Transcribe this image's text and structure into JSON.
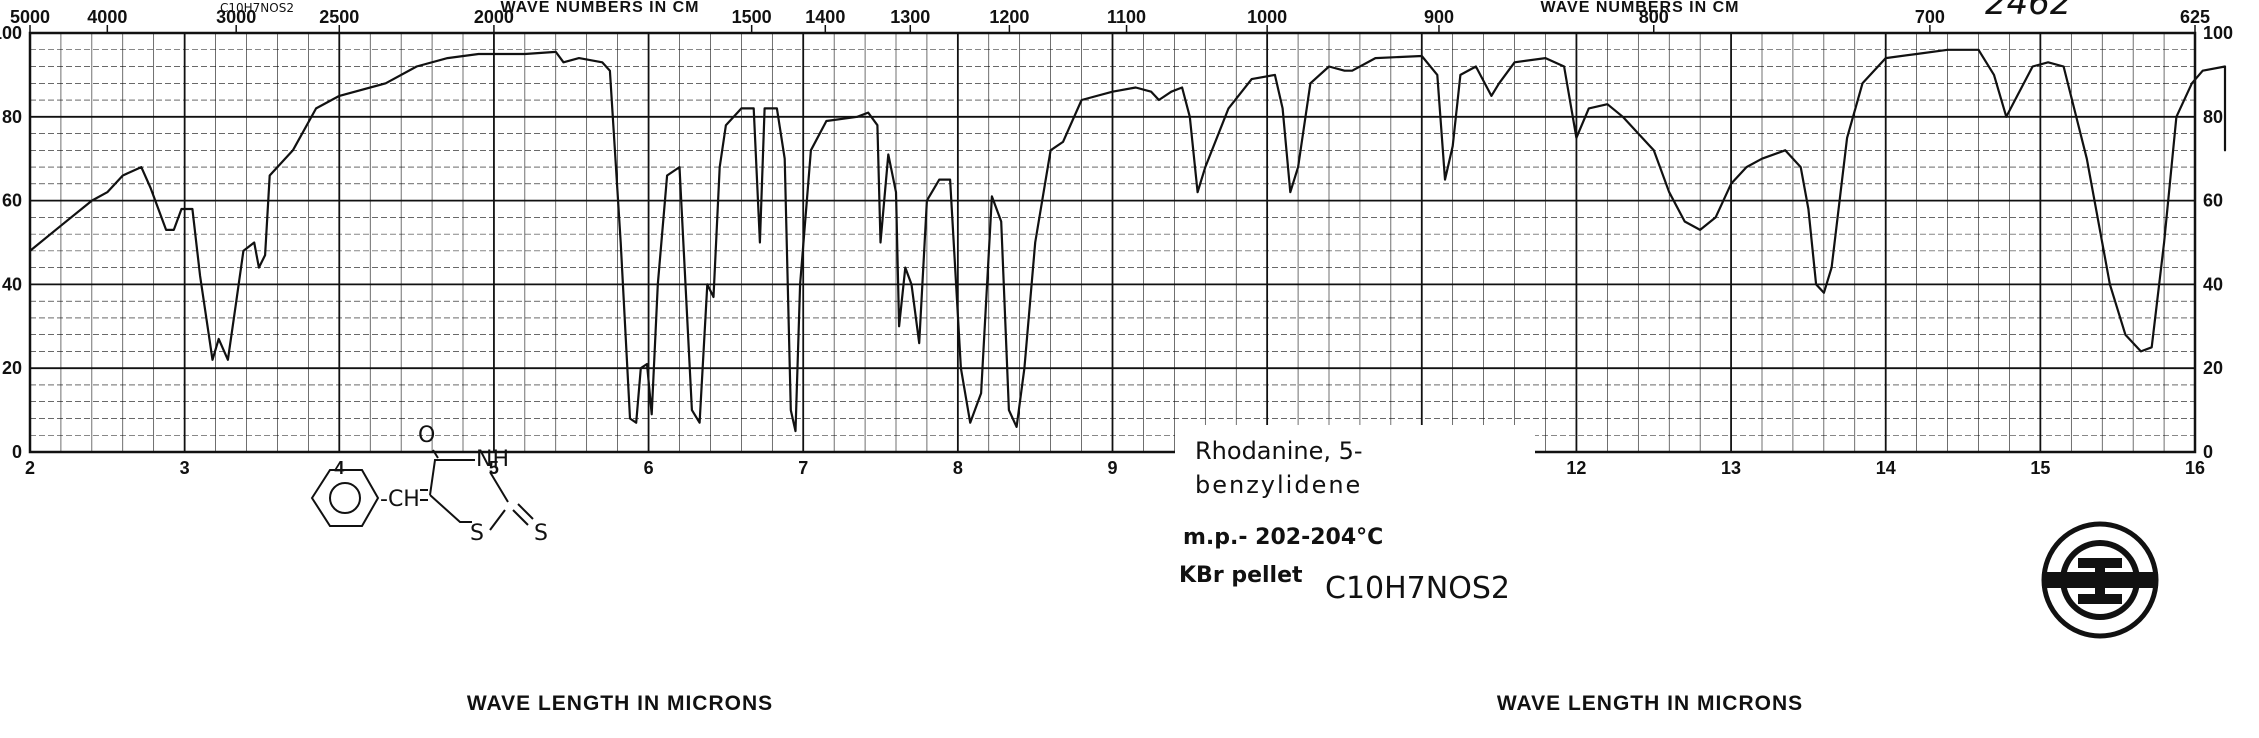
{
  "chart_data": {
    "type": "line",
    "xlabel": "WAVE LENGTH IN MICRONS",
    "top_axis_label": "WAVE NUMBERS IN CM",
    "xlim": [
      2,
      16
    ],
    "ylim": [
      0,
      100
    ],
    "x_ticks": [
      "2",
      "3",
      "4",
      "5",
      "6",
      "7",
      "8",
      "9",
      "10",
      "11",
      "12",
      "13",
      "14",
      "15",
      "16"
    ],
    "y_ticks_left": [
      "0",
      "20",
      "40",
      "60",
      "80",
      "100"
    ],
    "y_ticks_right": [
      "0",
      "20",
      "40",
      "60",
      "80",
      "100"
    ],
    "top_ticks": [
      {
        "label": "5000",
        "wavenumber": 5000
      },
      {
        "label": "4000",
        "wavenumber": 4000
      },
      {
        "label": "3000",
        "wavenumber": 3000
      },
      {
        "label": "2500",
        "wavenumber": 2500
      },
      {
        "label": "2000",
        "wavenumber": 2000
      },
      {
        "label": "1500",
        "wavenumber": 1500
      },
      {
        "label": "1400",
        "wavenumber": 1400
      },
      {
        "label": "1300",
        "wavenumber": 1300
      },
      {
        "label": "1200",
        "wavenumber": 1200
      },
      {
        "label": "1100",
        "wavenumber": 1100
      },
      {
        "label": "1000",
        "wavenumber": 1000
      },
      {
        "label": "900",
        "wavenumber": 900
      },
      {
        "label": "800",
        "wavenumber": 800
      },
      {
        "label": "700",
        "wavenumber": 700
      },
      {
        "label": "625",
        "wavenumber": 625
      }
    ],
    "grid": true,
    "series": [
      {
        "points": [
          [
            2.0,
            48
          ],
          [
            2.2,
            54
          ],
          [
            2.4,
            60
          ],
          [
            2.5,
            62
          ],
          [
            2.6,
            66
          ],
          [
            2.72,
            68
          ],
          [
            2.78,
            63
          ],
          [
            2.88,
            53
          ],
          [
            2.93,
            53
          ],
          [
            2.98,
            58
          ],
          [
            3.05,
            58
          ],
          [
            3.1,
            42
          ],
          [
            3.18,
            22
          ],
          [
            3.22,
            27
          ],
          [
            3.28,
            22
          ],
          [
            3.33,
            35
          ],
          [
            3.38,
            48
          ],
          [
            3.45,
            50
          ],
          [
            3.48,
            44
          ],
          [
            3.52,
            47
          ],
          [
            3.55,
            66
          ],
          [
            3.7,
            72
          ],
          [
            3.85,
            82
          ],
          [
            4.0,
            85
          ],
          [
            4.3,
            88
          ],
          [
            4.5,
            92
          ],
          [
            4.7,
            94
          ],
          [
            4.9,
            95
          ],
          [
            5.2,
            95
          ],
          [
            5.4,
            95.5
          ],
          [
            5.45,
            93
          ],
          [
            5.55,
            94
          ],
          [
            5.7,
            93
          ],
          [
            5.75,
            91
          ],
          [
            5.82,
            50
          ],
          [
            5.88,
            8
          ],
          [
            5.92,
            7
          ],
          [
            5.95,
            20
          ],
          [
            5.99,
            21
          ],
          [
            6.02,
            9
          ],
          [
            6.06,
            40
          ],
          [
            6.12,
            66
          ],
          [
            6.2,
            68
          ],
          [
            6.28,
            10
          ],
          [
            6.33,
            7
          ],
          [
            6.38,
            40
          ],
          [
            6.42,
            37
          ],
          [
            6.46,
            68
          ],
          [
            6.5,
            78
          ],
          [
            6.6,
            82
          ],
          [
            6.68,
            82
          ],
          [
            6.72,
            50
          ],
          [
            6.75,
            82
          ],
          [
            6.83,
            82
          ],
          [
            6.88,
            70
          ],
          [
            6.92,
            10
          ],
          [
            6.95,
            5
          ],
          [
            6.98,
            40
          ],
          [
            7.05,
            72
          ],
          [
            7.15,
            79
          ],
          [
            7.35,
            80
          ],
          [
            7.42,
            81
          ],
          [
            7.48,
            78
          ],
          [
            7.5,
            50
          ],
          [
            7.55,
            71
          ],
          [
            7.6,
            62
          ],
          [
            7.62,
            30
          ],
          [
            7.66,
            44
          ],
          [
            7.7,
            40
          ],
          [
            7.75,
            26
          ],
          [
            7.8,
            60
          ],
          [
            7.88,
            65
          ],
          [
            7.95,
            65
          ],
          [
            8.02,
            20
          ],
          [
            8.08,
            7
          ],
          [
            8.15,
            14
          ],
          [
            8.22,
            61
          ],
          [
            8.28,
            55
          ],
          [
            8.33,
            10
          ],
          [
            8.38,
            6
          ],
          [
            8.43,
            20
          ],
          [
            8.5,
            50
          ],
          [
            8.6,
            72
          ],
          [
            8.68,
            74
          ],
          [
            8.8,
            84
          ],
          [
            9.0,
            86
          ],
          [
            9.15,
            87
          ],
          [
            9.25,
            86
          ],
          [
            9.3,
            84
          ],
          [
            9.38,
            86
          ],
          [
            9.45,
            87
          ],
          [
            9.5,
            80
          ],
          [
            9.55,
            62
          ],
          [
            9.6,
            68
          ],
          [
            9.75,
            82
          ],
          [
            9.9,
            89
          ],
          [
            10.05,
            90
          ],
          [
            10.1,
            82
          ],
          [
            10.15,
            62
          ],
          [
            10.2,
            68
          ],
          [
            10.28,
            88
          ],
          [
            10.4,
            92
          ],
          [
            10.5,
            91
          ],
          [
            10.55,
            91
          ],
          [
            10.7,
            94
          ],
          [
            11.0,
            94.5
          ],
          [
            11.1,
            90
          ],
          [
            11.15,
            65
          ],
          [
            11.2,
            73
          ],
          [
            11.25,
            90
          ],
          [
            11.35,
            92
          ],
          [
            11.45,
            85
          ],
          [
            11.5,
            88
          ],
          [
            11.6,
            93
          ],
          [
            11.8,
            94
          ],
          [
            11.92,
            92
          ],
          [
            12.0,
            75
          ],
          [
            12.08,
            82
          ],
          [
            12.2,
            83
          ],
          [
            12.3,
            80
          ],
          [
            12.5,
            72
          ],
          [
            12.6,
            62
          ],
          [
            12.7,
            55
          ],
          [
            12.8,
            53
          ],
          [
            12.9,
            56
          ],
          [
            13.0,
            64
          ],
          [
            13.1,
            68
          ],
          [
            13.2,
            70
          ],
          [
            13.35,
            72
          ],
          [
            13.45,
            68
          ],
          [
            13.5,
            58
          ],
          [
            13.55,
            40
          ],
          [
            13.6,
            38
          ],
          [
            13.65,
            44
          ],
          [
            13.75,
            75
          ],
          [
            13.85,
            88
          ],
          [
            14.0,
            94
          ],
          [
            14.2,
            95
          ],
          [
            14.4,
            96
          ],
          [
            14.6,
            96
          ],
          [
            14.7,
            90
          ],
          [
            14.78,
            80
          ],
          [
            14.85,
            85
          ],
          [
            14.95,
            92
          ],
          [
            15.05,
            93
          ],
          [
            15.15,
            92
          ],
          [
            15.3,
            70
          ],
          [
            15.45,
            40
          ],
          [
            15.55,
            28
          ],
          [
            15.65,
            24
          ],
          [
            15.72,
            25
          ],
          [
            15.8,
            50
          ],
          [
            15.88,
            80
          ],
          [
            15.98,
            88
          ],
          [
            16.05,
            91
          ],
          [
            16.2,
            92
          ],
          [
            16.38,
            92
          ],
          [
            16.45,
            88
          ],
          [
            16.55,
            76
          ],
          [
            16.65,
            72
          ],
          [
            16.8,
            73
          ],
          [
            16.95,
            76
          ],
          [
            17.0,
            76
          ]
        ]
      }
    ]
  },
  "annotations": {
    "compound_name_line1": "Rhodanine, 5-",
    "compound_name_line2": "benzylidene",
    "melting_point": "m.p.- 202-204°C",
    "sample_prep": "KBr pellet",
    "formula": "C10H7NOS2",
    "formula_top": "C10H7NOS2",
    "spectrum_number": "2462",
    "struct_o": "O",
    "struct_nh": "NH",
    "struct_ch": "-CH",
    "struct_s1": "S",
    "struct_s2": "S"
  },
  "colors": {
    "ink": "#111111",
    "grid": "#222222",
    "paper": "#ffffff"
  }
}
